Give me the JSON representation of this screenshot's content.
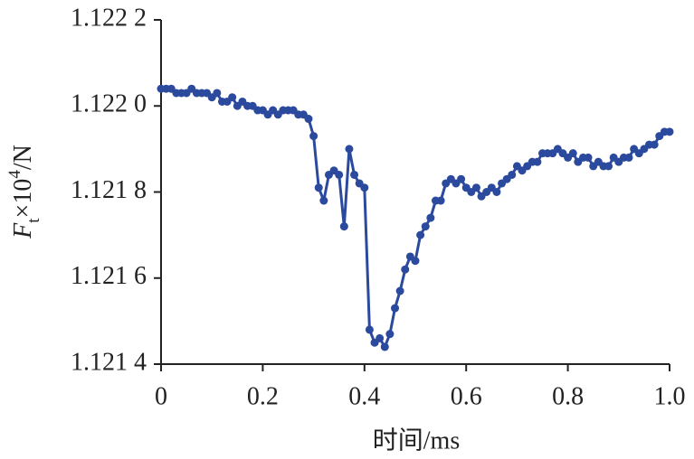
{
  "chart_data": {
    "type": "line",
    "x_label": "时间/ms",
    "y_label": {
      "main": "F",
      "sub": "t",
      "mid": "×10",
      "sup": "4",
      "end": "/N"
    },
    "x": [
      0,
      0.01,
      0.02,
      0.03,
      0.04,
      0.05,
      0.06,
      0.07,
      0.08,
      0.09,
      0.1,
      0.11,
      0.12,
      0.13,
      0.14,
      0.15,
      0.16,
      0.17,
      0.18,
      0.19,
      0.2,
      0.21,
      0.22,
      0.23,
      0.24,
      0.25,
      0.26,
      0.27,
      0.28,
      0.29,
      0.3,
      0.31,
      0.32,
      0.33,
      0.34,
      0.35,
      0.36,
      0.37,
      0.38,
      0.39,
      0.4,
      0.41,
      0.42,
      0.43,
      0.44,
      0.45,
      0.46,
      0.47,
      0.48,
      0.49,
      0.5,
      0.51,
      0.52,
      0.53,
      0.54,
      0.55,
      0.56,
      0.57,
      0.58,
      0.59,
      0.6,
      0.61,
      0.62,
      0.63,
      0.64,
      0.65,
      0.66,
      0.67,
      0.68,
      0.69,
      0.7,
      0.71,
      0.72,
      0.73,
      0.74,
      0.75,
      0.76,
      0.77,
      0.78,
      0.79,
      0.8,
      0.81,
      0.82,
      0.83,
      0.84,
      0.85,
      0.86,
      0.87,
      0.88,
      0.89,
      0.9,
      0.91,
      0.92,
      0.93,
      0.94,
      0.95,
      0.96,
      0.97,
      0.98,
      0.99,
      1
    ],
    "series": [
      {
        "color": "#2b4a9e",
        "values": [
          1.12204,
          1.12204,
          1.12204,
          1.12203,
          1.12203,
          1.12203,
          1.12204,
          1.12203,
          1.12203,
          1.12203,
          1.12202,
          1.12203,
          1.12201,
          1.12201,
          1.12202,
          1.122,
          1.12201,
          1.122,
          1.122,
          1.12199,
          1.12199,
          1.12198,
          1.12199,
          1.12198,
          1.12199,
          1.12199,
          1.12199,
          1.12198,
          1.12198,
          1.12197,
          1.12193,
          1.12181,
          1.12178,
          1.12184,
          1.12185,
          1.12184,
          1.12172,
          1.1219,
          1.12184,
          1.12182,
          1.12181,
          1.12148,
          1.12145,
          1.12146,
          1.12144,
          1.12147,
          1.12153,
          1.12157,
          1.12162,
          1.12165,
          1.12164,
          1.1217,
          1.12172,
          1.12174,
          1.12178,
          1.12178,
          1.12182,
          1.12183,
          1.12182,
          1.12183,
          1.12181,
          1.1218,
          1.12181,
          1.12179,
          1.1218,
          1.12181,
          1.1218,
          1.12182,
          1.12183,
          1.12184,
          1.12186,
          1.12185,
          1.12186,
          1.12187,
          1.12187,
          1.12189,
          1.12189,
          1.12189,
          1.1219,
          1.12189,
          1.12188,
          1.12189,
          1.12187,
          1.12188,
          1.12188,
          1.12186,
          1.12187,
          1.12186,
          1.12186,
          1.12188,
          1.12187,
          1.12188,
          1.12188,
          1.1219,
          1.12189,
          1.1219,
          1.12191,
          1.12191,
          1.12193,
          1.12194,
          1.12194
        ]
      }
    ],
    "xlim": [
      0,
      1
    ],
    "xticks": [
      0,
      0.2,
      0.4,
      0.6,
      0.8,
      {
        "value": 1,
        "label": "1.0"
      }
    ],
    "ylim": [
      1.1214,
      1.1222
    ],
    "yticks": [
      {
        "value": 1.1214,
        "label": "1.121 4"
      },
      {
        "value": 1.1216,
        "label": "1.121 6"
      },
      {
        "value": 1.1218,
        "label": "1.121 8"
      },
      {
        "value": 1.122,
        "label": "1.122 0"
      },
      {
        "value": 1.1222,
        "label": "1.122 2"
      }
    ],
    "grid": false
  }
}
